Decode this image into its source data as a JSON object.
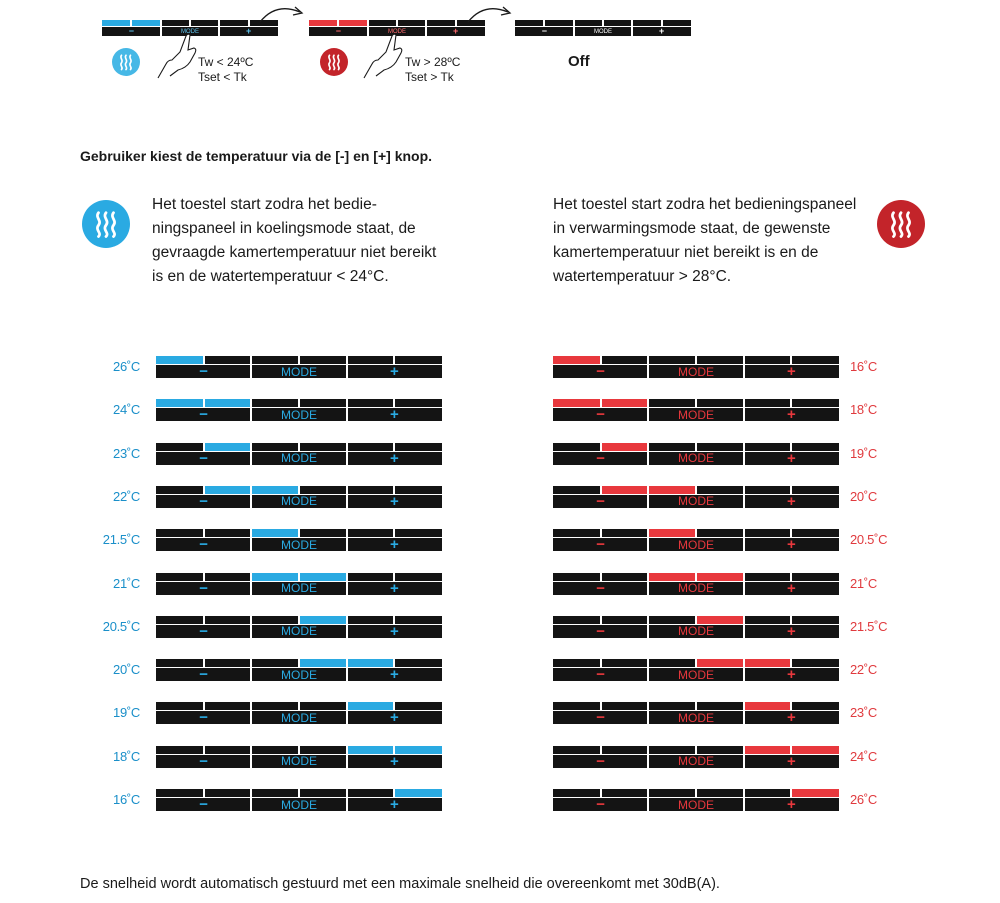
{
  "colors": {
    "cool": "#2aaae2",
    "heat": "#e8383d",
    "panel": "#141414",
    "cool_text": "#1a8fc9",
    "heat_text": "#e03a3e"
  },
  "panel_labels": {
    "minus": "−",
    "mode": "MODE",
    "plus": "+"
  },
  "top_row": {
    "cooling_condition": {
      "line1": "Tw < 24ºC",
      "line2": "Tset < Tk"
    },
    "heating_condition": {
      "line1": "Tw > 28ºC",
      "line2": "Tset > Tk"
    },
    "off_label": "Off",
    "icons": [
      "cooling-wave-icon",
      "hand-press-icon",
      "heating-wave-icon",
      "arrow-icon"
    ]
  },
  "heading": "Gebruiker kiest de temperatuur via de [-] en [+] knop.",
  "cooling_text": {
    "lines": [
      "Het toestel start zodra het bedie-",
      "ningspaneel in koelingsmode staat, de",
      "gevraagde kamertemperatuur niet bereikt",
      "is en de watertemperatuur < 24°C."
    ]
  },
  "heating_text": {
    "lines": [
      "Het toestel start zodra het bedieningspaneel",
      "in verwarmingsmode staat, de gewenste",
      "kamertemperatuur niet bereikt is en de",
      "watertemperatuur > 28°C."
    ]
  },
  "cooling_rows": [
    {
      "temp": "26˚C",
      "lit": [
        0
      ]
    },
    {
      "temp": "24˚C",
      "lit": [
        0,
        1
      ]
    },
    {
      "temp": "23˚C",
      "lit": [
        1
      ]
    },
    {
      "temp": "22˚C",
      "lit": [
        1,
        2
      ]
    },
    {
      "temp": "21.5˚C",
      "lit": [
        2
      ]
    },
    {
      "temp": "21˚C",
      "lit": [
        2,
        3
      ]
    },
    {
      "temp": "20.5˚C",
      "lit": [
        3
      ]
    },
    {
      "temp": "20˚C",
      "lit": [
        3,
        4
      ]
    },
    {
      "temp": "19˚C",
      "lit": [
        4
      ]
    },
    {
      "temp": "18˚C",
      "lit": [
        4,
        5
      ]
    },
    {
      "temp": "16˚C",
      "lit": [
        5
      ]
    }
  ],
  "heating_rows": [
    {
      "temp": "16˚C",
      "lit": [
        0
      ]
    },
    {
      "temp": "18˚C",
      "lit": [
        0,
        1
      ]
    },
    {
      "temp": "19˚C",
      "lit": [
        1
      ]
    },
    {
      "temp": "20˚C",
      "lit": [
        1,
        2
      ]
    },
    {
      "temp": "20.5˚C",
      "lit": [
        2
      ]
    },
    {
      "temp": "21˚C",
      "lit": [
        2,
        3
      ]
    },
    {
      "temp": "21.5˚C",
      "lit": [
        3
      ]
    },
    {
      "temp": "22˚C",
      "lit": [
        3,
        4
      ]
    },
    {
      "temp": "23˚C",
      "lit": [
        4
      ]
    },
    {
      "temp": "24˚C",
      "lit": [
        4,
        5
      ]
    },
    {
      "temp": "26˚C",
      "lit": [
        5
      ]
    }
  ],
  "footer": "De snelheid wordt automatisch gestuurd met een maximale snelheid die overeenkomt met 30dB(A)."
}
